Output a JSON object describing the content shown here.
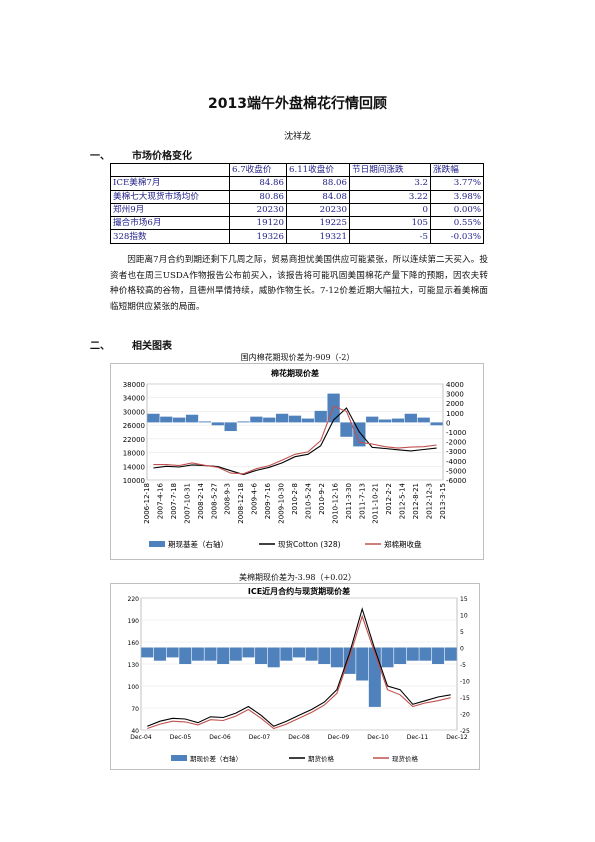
{
  "document": {
    "title": "2013端午外盘棉花行情回顾",
    "author": "沈祥龙"
  },
  "sections": [
    {
      "num": "一、",
      "heading": "市场价格变化"
    },
    {
      "num": "二、",
      "heading": "相关图表"
    }
  ],
  "price_table": {
    "headers": [
      "",
      "6.7收盘价",
      "6.11收盘价",
      "节日期间涨跌",
      "涨跌幅"
    ],
    "rows": [
      [
        "ICE美棉7月",
        "84.86",
        "88.06",
        "3.2",
        "3.77%"
      ],
      [
        "美棉七大现货市场均价",
        "80.86",
        "84.08",
        "3.22",
        "3.98%"
      ],
      [
        "郑州9月",
        "20230",
        "20230",
        "0",
        "0.00%"
      ],
      [
        "撮合市场6月",
        "19120",
        "19225",
        "105",
        "0.55%"
      ],
      [
        "328指数",
        "19326",
        "19321",
        "-5",
        "-0.03%"
      ]
    ]
  },
  "paragraph": "因距离7月合约到期还剩下几周之际，贸易商担忧美国供应可能紧张，所以连续第二天买入。投资者也在周三USDA作物报告公布前买入，该报告将可能巩固美国棉花产量下降的预期，因农夫转种价格较高的谷物，且德州旱情持续，威胁作物生长。7-12价差近期大幅拉大，可能显示着美棉面临短期供应紧张的局面。",
  "chart1": {
    "caption": "国内棉花期现价差为-909（-2）",
    "title": "棉花期现价差",
    "colors": {
      "bar": "#4f81bd",
      "spot": "#000000",
      "futures": "#c0504d"
    },
    "chart_data": {
      "type": "line",
      "title": "棉花期现价差",
      "x_ticks": [
        "2006-12-18",
        "2007-4-16",
        "2007-7-18",
        "2007-10-31",
        "2008-2-14",
        "2008-5-27",
        "2008-9-3",
        "2008-12-18",
        "2009-4-6",
        "2009-7-16",
        "2009-10-30",
        "2010-2-8",
        "2010-5-24",
        "2010-9-2",
        "2010-12-16",
        "2011-3-30",
        "2011-7-13",
        "2011-10-21",
        "2012-2-2",
        "2012-5-14",
        "2012-8-21",
        "2012-12-3",
        "2013-3-15"
      ],
      "y_left_ticks": [
        "38000",
        "34000",
        "30000",
        "26000",
        "22000",
        "18000",
        "14000",
        "10000"
      ],
      "y_right_ticks": [
        "4000",
        "3000",
        "2000",
        "1000",
        "0",
        "-1000",
        "-2000",
        "-3000",
        "-4000",
        "-5000",
        "-6000"
      ],
      "ylim_left": [
        10000,
        38000
      ],
      "ylim_right": [
        -6000,
        4000
      ],
      "legend": [
        "期现基差（右轴）",
        "现货Cotton (328)",
        "郑棉期收盘"
      ],
      "series": [
        {
          "name": "现货Cotton (328)",
          "axis": "left",
          "values": [
            13500,
            14000,
            13800,
            14400,
            14200,
            13900,
            12700,
            11600,
            12800,
            13700,
            15000,
            16800,
            17500,
            20000,
            27500,
            31000,
            24000,
            19500,
            19200,
            18800,
            18500,
            18900,
            19300
          ]
        },
        {
          "name": "郑棉期收盘",
          "axis": "left",
          "values": [
            14500,
            14500,
            14200,
            15000,
            14300,
            13700,
            12000,
            11800,
            13300,
            14200,
            15800,
            17500,
            18200,
            21500,
            31500,
            30000,
            21000,
            20500,
            19700,
            19300,
            19600,
            19700,
            20200
          ]
        },
        {
          "name": "期现基差（右轴）",
          "axis": "right",
          "values": [
            900,
            600,
            500,
            800,
            100,
            -300,
            -900,
            100,
            600,
            500,
            900,
            700,
            400,
            1200,
            3000,
            -1500,
            -2500,
            600,
            300,
            400,
            900,
            500,
            -300
          ]
        }
      ]
    }
  },
  "chart2": {
    "caption": "美棉期现价差为-3.98（+0.02）",
    "title": "ICE近月合约与现货期现价差",
    "colors": {
      "bar": "#4f81bd",
      "spot": "#000000",
      "futures": "#c0504d"
    },
    "chart_data": {
      "type": "line",
      "title": "ICE近月合约与现货期现价差",
      "x_ticks": [
        "Dec-04",
        "Dec-05",
        "Dec-06",
        "Dec-07",
        "Dec-08",
        "Dec-09",
        "Dec-10",
        "Dec-11",
        "Dec-12"
      ],
      "y_left_ticks": [
        "220",
        "190",
        "160",
        "130",
        "100",
        "70",
        "40"
      ],
      "y_right_ticks": [
        "15",
        "10",
        "5",
        "0",
        "-5",
        "-10",
        "-15",
        "-20",
        "-25"
      ],
      "ylim_left": [
        40,
        220
      ],
      "ylim_right": [
        -25,
        15
      ],
      "legend": [
        "期现价差（右轴）",
        "期货价格",
        "现货价格"
      ],
      "series": [
        {
          "name": "期货价格",
          "axis": "left",
          "values": [
            45,
            52,
            56,
            55,
            50,
            58,
            57,
            63,
            72,
            60,
            45,
            52,
            60,
            68,
            78,
            95,
            145,
            205,
            150,
            100,
            95,
            75,
            80,
            85,
            88
          ]
        },
        {
          "name": "现货价格",
          "axis": "left",
          "values": [
            42,
            48,
            52,
            51,
            47,
            54,
            53,
            59,
            68,
            56,
            42,
            48,
            56,
            64,
            74,
            90,
            140,
            195,
            145,
            95,
            88,
            72,
            77,
            80,
            84
          ]
        },
        {
          "name": "期现价差（右轴）",
          "axis": "right",
          "values": [
            -3,
            -4,
            -3,
            -5,
            -4,
            -4,
            -5,
            -4,
            -3,
            -5,
            -6,
            -4,
            -3,
            -4,
            -5,
            -6,
            -8,
            -10,
            -18,
            -6,
            -5,
            -4,
            -4,
            -5,
            -4
          ]
        }
      ]
    }
  }
}
